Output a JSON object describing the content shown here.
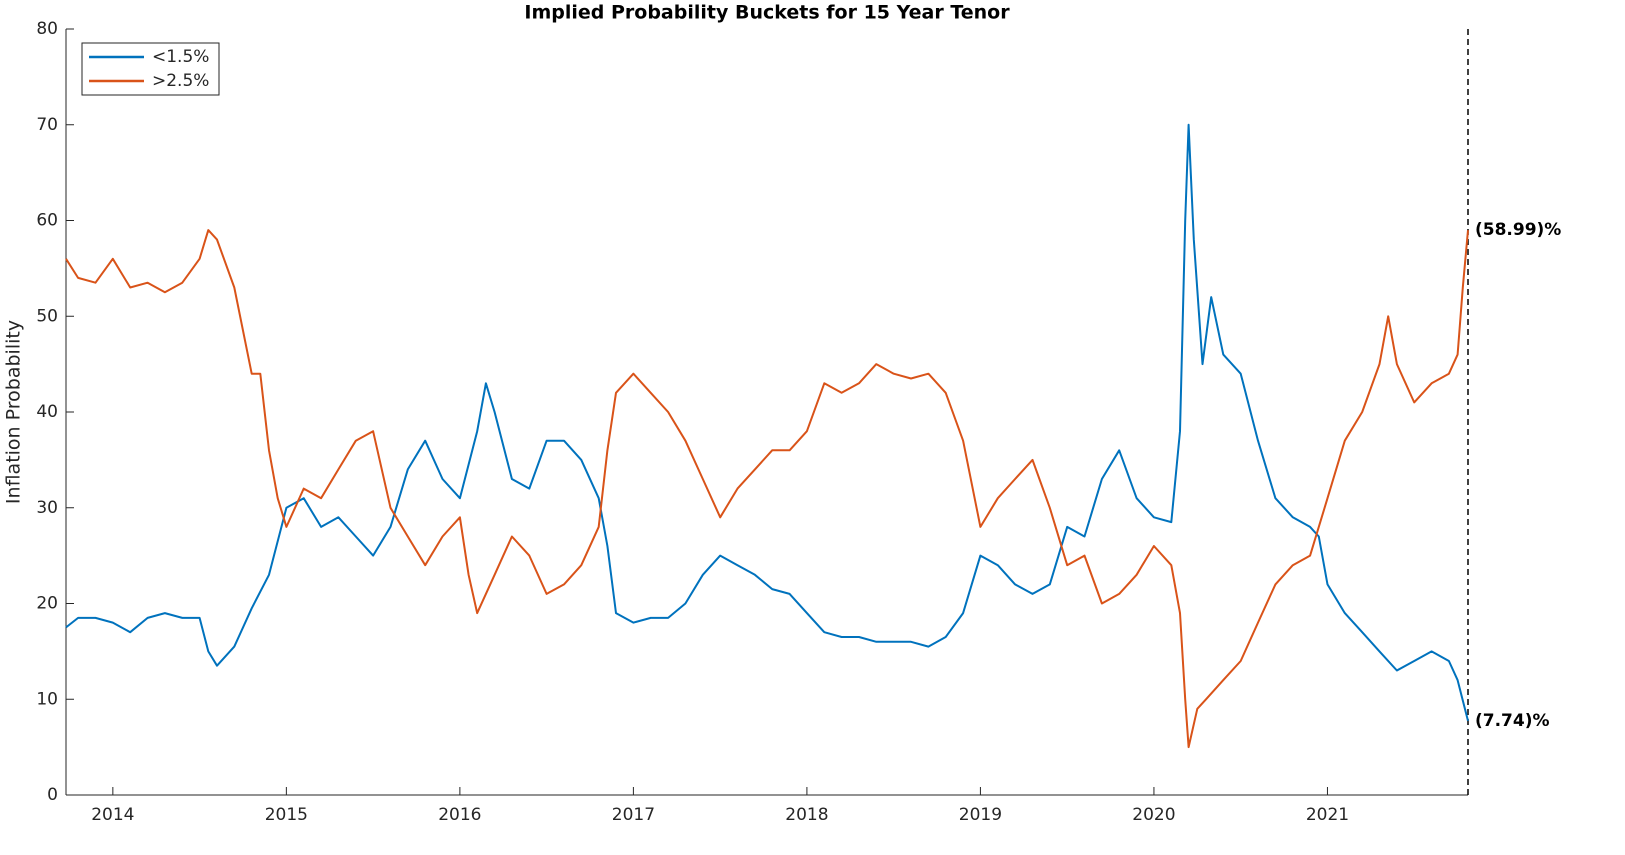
{
  "chart_data": {
    "type": "line",
    "title": "Implied Probability Buckets for 15 Year Tenor",
    "y_label": "Inflation Probability",
    "xlim": [
      2013.73,
      2021.81
    ],
    "xticks": [
      2014,
      2015,
      2016,
      2017,
      2018,
      2019,
      2020,
      2021
    ],
    "ylim": [
      0,
      80
    ],
    "yticks": [
      0,
      10,
      20,
      30,
      40,
      50,
      60,
      70,
      80
    ],
    "legend": "upper-left",
    "series": [
      {
        "name": "<1.5%",
        "color": "#0072bd",
        "x": [
          2013.73,
          2013.8,
          2013.9,
          2014.0,
          2014.1,
          2014.2,
          2014.3,
          2014.4,
          2014.5,
          2014.55,
          2014.6,
          2014.7,
          2014.8,
          2014.9,
          2015.0,
          2015.1,
          2015.2,
          2015.3,
          2015.4,
          2015.5,
          2015.6,
          2015.7,
          2015.8,
          2015.9,
          2016.0,
          2016.1,
          2016.15,
          2016.2,
          2016.3,
          2016.4,
          2016.5,
          2016.6,
          2016.7,
          2016.8,
          2016.85,
          2016.9,
          2017.0,
          2017.1,
          2017.2,
          2017.3,
          2017.4,
          2017.5,
          2017.6,
          2017.7,
          2017.8,
          2017.9,
          2018.0,
          2018.1,
          2018.2,
          2018.3,
          2018.4,
          2018.5,
          2018.6,
          2018.7,
          2018.8,
          2018.9,
          2019.0,
          2019.1,
          2019.2,
          2019.3,
          2019.4,
          2019.5,
          2019.6,
          2019.7,
          2019.8,
          2019.9,
          2020.0,
          2020.1,
          2020.15,
          2020.18,
          2020.2,
          2020.23,
          2020.28,
          2020.33,
          2020.4,
          2020.5,
          2020.6,
          2020.7,
          2020.8,
          2020.9,
          2020.95,
          2021.0,
          2021.1,
          2021.2,
          2021.3,
          2021.4,
          2021.5,
          2021.6,
          2021.7,
          2021.75,
          2021.81
        ],
        "values": [
          17.5,
          18.5,
          18.5,
          18,
          17,
          18.5,
          19,
          18.5,
          18.5,
          15,
          13.5,
          15.5,
          19.5,
          23,
          30,
          31,
          28,
          29,
          27,
          25,
          28,
          34,
          37,
          33,
          31,
          38,
          43,
          40,
          33,
          32,
          37,
          37,
          35,
          31,
          26,
          19,
          18,
          18.5,
          18.5,
          20,
          23,
          25,
          24,
          23,
          21.5,
          21,
          19,
          17,
          16.5,
          16.5,
          16,
          16,
          16,
          15.5,
          16.5,
          19,
          25,
          24,
          22,
          21,
          22,
          28,
          27,
          33,
          36,
          31,
          29,
          28.5,
          38,
          60,
          70,
          58,
          45,
          52,
          46,
          44,
          37,
          31,
          29,
          28,
          27,
          22,
          19,
          17,
          15,
          13,
          14,
          15,
          14,
          12,
          7.74
        ],
        "end_label": {
          "value": 7.74,
          "label": "(7.74)%"
        }
      },
      {
        "name": ">2.5%",
        "color": "#d95319",
        "x": [
          2013.73,
          2013.8,
          2013.9,
          2014.0,
          2014.1,
          2014.2,
          2014.3,
          2014.4,
          2014.5,
          2014.55,
          2014.6,
          2014.7,
          2014.8,
          2014.85,
          2014.9,
          2014.95,
          2015.0,
          2015.1,
          2015.2,
          2015.3,
          2015.4,
          2015.5,
          2015.6,
          2015.7,
          2015.8,
          2015.9,
          2016.0,
          2016.05,
          2016.1,
          2016.2,
          2016.3,
          2016.4,
          2016.5,
          2016.6,
          2016.7,
          2016.8,
          2016.85,
          2016.9,
          2017.0,
          2017.1,
          2017.2,
          2017.3,
          2017.4,
          2017.5,
          2017.6,
          2017.7,
          2017.8,
          2017.9,
          2018.0,
          2018.1,
          2018.2,
          2018.3,
          2018.4,
          2018.5,
          2018.6,
          2018.7,
          2018.8,
          2018.9,
          2019.0,
          2019.1,
          2019.2,
          2019.3,
          2019.4,
          2019.5,
          2019.6,
          2019.7,
          2019.8,
          2019.9,
          2020.0,
          2020.1,
          2020.15,
          2020.18,
          2020.2,
          2020.25,
          2020.3,
          2020.4,
          2020.5,
          2020.6,
          2020.7,
          2020.8,
          2020.9,
          2021.0,
          2021.1,
          2021.2,
          2021.3,
          2021.35,
          2021.4,
          2021.5,
          2021.6,
          2021.7,
          2021.75,
          2021.78,
          2021.81
        ],
        "values": [
          56,
          54,
          53.5,
          56,
          53,
          53.5,
          52.5,
          53.5,
          56,
          59,
          58,
          53,
          44,
          44,
          36,
          31,
          28,
          32,
          31,
          34,
          37,
          38,
          30,
          27,
          24,
          27,
          29,
          23,
          19,
          23,
          27,
          25,
          21,
          22,
          24,
          28,
          36,
          42,
          44,
          42,
          40,
          37,
          33,
          29,
          32,
          34,
          36,
          36,
          38,
          43,
          42,
          43,
          45,
          44,
          43.5,
          44,
          42,
          37,
          28,
          31,
          33,
          35,
          30,
          24,
          25,
          20,
          21,
          23,
          26,
          24,
          19,
          10,
          5,
          9,
          10,
          12,
          14,
          18,
          22,
          24,
          25,
          31,
          37,
          40,
          45,
          50,
          45,
          41,
          43,
          44,
          46,
          53,
          58.99
        ],
        "end_label": {
          "value": 58.99,
          "label": "(58.99)%"
        }
      }
    ]
  }
}
